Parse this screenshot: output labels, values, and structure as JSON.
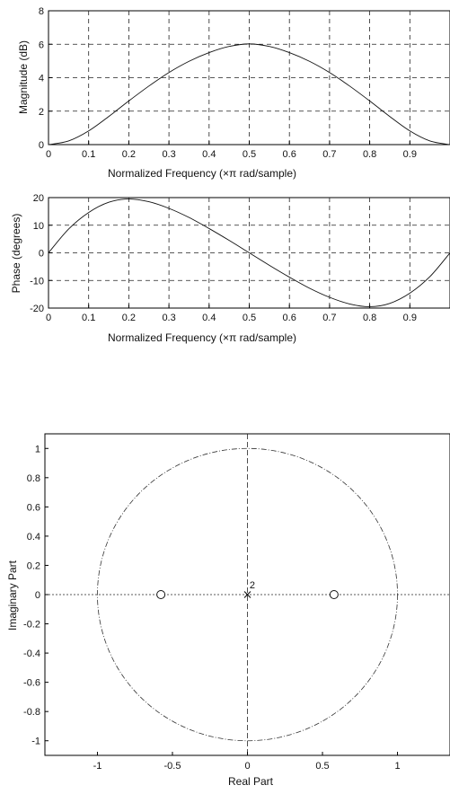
{
  "chart_data": [
    {
      "type": "line",
      "xlabel": "Normalized Frequency  (×π rad/sample)",
      "ylabel": "Magnitude (dB)",
      "xlim": [
        0,
        1
      ],
      "ylim": [
        0,
        8
      ],
      "xticks": [
        0,
        0.1,
        0.2,
        0.3,
        0.4,
        0.5,
        0.6,
        0.7,
        0.8,
        0.9
      ],
      "xtick_labels": [
        "0",
        "0.1",
        "0.2",
        "0.3",
        "0.4",
        "0.5",
        "0.6",
        "0.7",
        "0.8",
        "0.9"
      ],
      "yticks": [
        0,
        2,
        4,
        6,
        8
      ],
      "ytick_labels": [
        "0",
        "2",
        "4",
        "6",
        "8"
      ],
      "grid": true,
      "series": [
        {
          "x": [
            0,
            0.05,
            0.1,
            0.15,
            0.2,
            0.25,
            0.3,
            0.35,
            0.4,
            0.45,
            0.5,
            0.55,
            0.6,
            0.65,
            0.7,
            0.75,
            0.8,
            0.85,
            0.9,
            0.95,
            1.0
          ],
          "y": [
            0,
            0.22,
            0.82,
            1.68,
            2.61,
            3.5,
            4.31,
            4.98,
            5.5,
            5.87,
            6.02,
            5.87,
            5.5,
            4.98,
            4.31,
            3.5,
            2.61,
            1.68,
            0.82,
            0.22,
            0
          ]
        }
      ]
    },
    {
      "type": "line",
      "xlabel": "Normalized Frequency  (×π rad/sample)",
      "ylabel": "Phase (degrees)",
      "xlim": [
        0,
        1
      ],
      "ylim": [
        -20,
        20
      ],
      "xticks": [
        0,
        0.1,
        0.2,
        0.3,
        0.4,
        0.5,
        0.6,
        0.7,
        0.8,
        0.9
      ],
      "xtick_labels": [
        "0",
        "0.1",
        "0.2",
        "0.3",
        "0.4",
        "0.5",
        "0.6",
        "0.7",
        "0.8",
        "0.9"
      ],
      "yticks": [
        -20,
        -10,
        0,
        10,
        20
      ],
      "ytick_labels": [
        "-20",
        "-10",
        "0",
        "10",
        "20"
      ],
      "grid": true,
      "series": [
        {
          "x": [
            0,
            0.05,
            0.1,
            0.15,
            0.2,
            0.25,
            0.3,
            0.35,
            0.4,
            0.45,
            0.5,
            0.55,
            0.6,
            0.65,
            0.7,
            0.75,
            0.8,
            0.85,
            0.9,
            0.95,
            1.0
          ],
          "y": [
            0,
            8.6,
            14.6,
            18.3,
            19.5,
            18.5,
            16.1,
            12.8,
            8.8,
            4.5,
            0,
            -4.5,
            -8.8,
            -12.8,
            -16.1,
            -18.5,
            -19.5,
            -18.3,
            -14.6,
            -8.6,
            0
          ]
        }
      ]
    },
    {
      "type": "scatter",
      "xlabel": "Real Part",
      "ylabel": "Imaginary Part",
      "xlim": [
        -1.35,
        1.35
      ],
      "ylim": [
        -1.1,
        1.1
      ],
      "xticks": [
        -1,
        -0.5,
        0,
        0.5,
        1
      ],
      "xtick_labels": [
        "-1",
        "-0.5",
        "0",
        "0.5",
        "1"
      ],
      "yticks": [
        1,
        0.8,
        0.6,
        0.4,
        0.2,
        0,
        -0.2,
        -0.4,
        -0.6,
        -0.8,
        -1
      ],
      "ytick_labels": [
        "1",
        "0.8",
        "0.6",
        "0.4",
        "0.2",
        "0",
        "-0.2",
        "-0.4",
        "-0.6",
        "-0.8",
        "-1"
      ],
      "grid": false,
      "unit_circle": true,
      "zeros": [
        [
          -0.577,
          0
        ],
        [
          0.577,
          0
        ]
      ],
      "poles": [
        [
          0,
          0
        ]
      ],
      "annotations": [
        {
          "text": "2",
          "x": 0.02,
          "y": 0.05
        }
      ]
    }
  ]
}
